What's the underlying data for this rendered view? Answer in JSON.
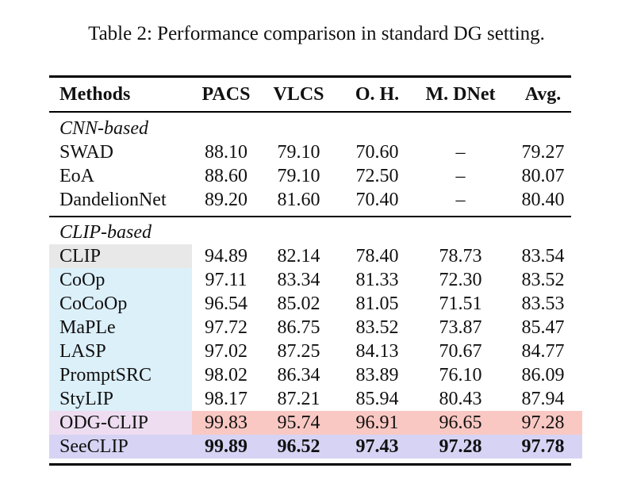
{
  "title": "Table 2: Performance comparison in standard DG setting.",
  "table": {
    "columns": [
      "Methods",
      "PACS",
      "VLCS",
      "O. H.",
      "M. DNet",
      "Avg."
    ],
    "sections": [
      {
        "label": "CNN-based",
        "rows": [
          {
            "method": "SWAD",
            "values": [
              "88.10",
              "79.10",
              "70.60",
              "–",
              "79.27"
            ]
          },
          {
            "method": "EoA",
            "values": [
              "88.60",
              "79.10",
              "72.50",
              "–",
              "80.07"
            ]
          },
          {
            "method": "DandelionNet",
            "values": [
              "89.20",
              "81.60",
              "70.40",
              "–",
              "80.40"
            ]
          }
        ]
      },
      {
        "label": "CLIP-based",
        "rows": [
          {
            "method": "CLIP",
            "values": [
              "94.89",
              "82.14",
              "78.40",
              "78.73",
              "83.54"
            ],
            "method_bg": "gray"
          },
          {
            "method": "CoOp",
            "values": [
              "97.11",
              "83.34",
              "81.33",
              "72.30",
              "83.52"
            ],
            "method_bg": "blue"
          },
          {
            "method": "CoCoOp",
            "values": [
              "96.54",
              "85.02",
              "81.05",
              "71.51",
              "83.53"
            ],
            "method_bg": "blue"
          },
          {
            "method": "MaPLe",
            "values": [
              "97.72",
              "86.75",
              "83.52",
              "73.87",
              "85.47"
            ],
            "method_bg": "blue"
          },
          {
            "method": "LASP",
            "values": [
              "97.02",
              "87.25",
              "84.13",
              "70.67",
              "84.77"
            ],
            "method_bg": "blue"
          },
          {
            "method": "PromptSRC",
            "values": [
              "98.02",
              "86.34",
              "83.89",
              "76.10",
              "86.09"
            ],
            "method_bg": "blue"
          },
          {
            "method": "StyLIP",
            "values": [
              "98.17",
              "87.21",
              "85.94",
              "80.43",
              "87.94"
            ],
            "method_bg": "blue"
          },
          {
            "method": "ODG-CLIP",
            "values": [
              "99.83",
              "95.74",
              "96.91",
              "96.65",
              "97.28"
            ],
            "method_bg": "pink_lavender",
            "values_bg": "salmon"
          },
          {
            "method": "SeeCLIP",
            "values": [
              "99.89",
              "96.52",
              "97.43",
              "97.28",
              "97.78"
            ],
            "row_bg": "lavender",
            "bold_values": true
          }
        ]
      }
    ],
    "highlight_colors": {
      "gray": "#e8e8e8",
      "blue": "#dcf0fa",
      "pink_lavender": "#eeddf1",
      "salmon": "#fac8c3",
      "lavender": "#d6d3f4"
    }
  }
}
